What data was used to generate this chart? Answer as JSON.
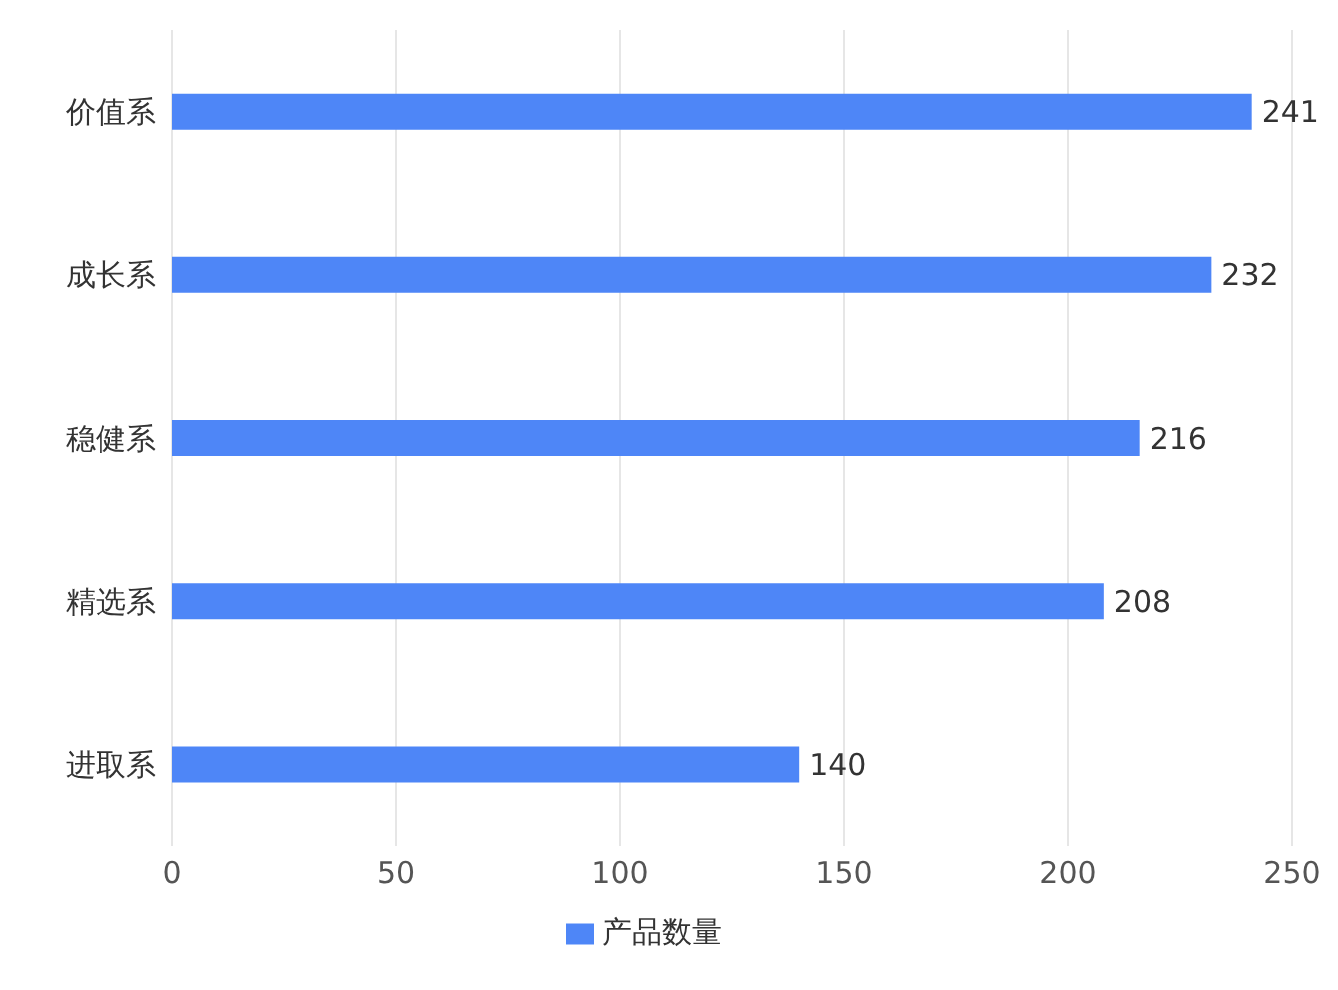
{
  "chart_data": {
    "type": "bar",
    "orientation": "horizontal",
    "categories": [
      "价值系",
      "成长系",
      "稳健系",
      "精选系",
      "进取系"
    ],
    "series": [
      {
        "name": "产品数量",
        "color": "#4e86f7",
        "values": [
          241,
          232,
          216,
          208,
          140
        ]
      }
    ],
    "xlim": [
      0,
      250
    ],
    "xticks": [
      0,
      50,
      100,
      150,
      200,
      250
    ],
    "grid": "x",
    "legend": "bottom",
    "data_labels": true
  }
}
